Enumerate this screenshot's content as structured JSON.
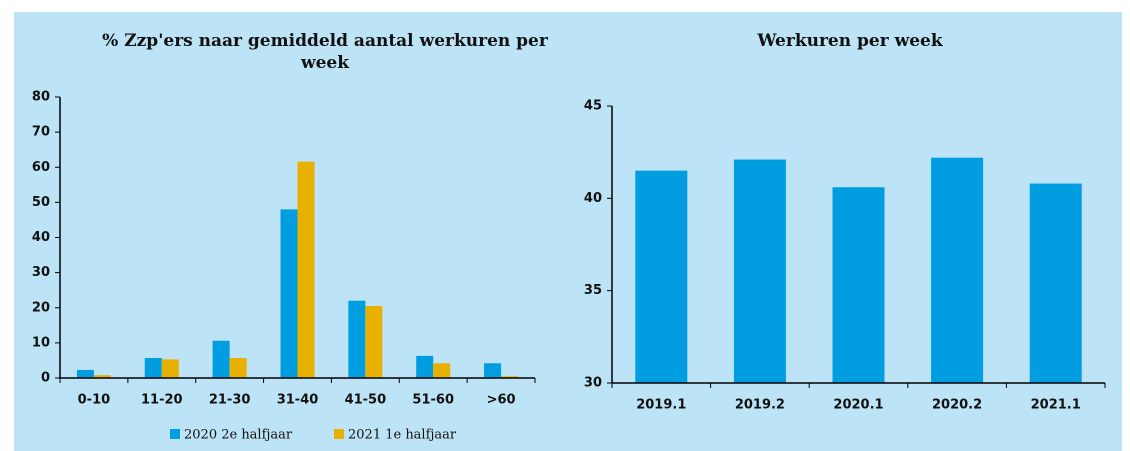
{
  "chart_data": [
    {
      "type": "bar",
      "title": "% Zzp'ers naar gemiddeld aantal werkuren per week",
      "categories": [
        "0-10",
        "11-20",
        "21-30",
        "31-40",
        "41-50",
        "51-60",
        ">60"
      ],
      "series": [
        {
          "name": "2020 2e halfjaar",
          "color": "#009de0",
          "values": [
            2.3,
            5.7,
            10.6,
            48,
            22,
            6.3,
            4.2
          ]
        },
        {
          "name": "2021 1e halfjaar",
          "color": "#e8b000",
          "values": [
            0.8,
            5.3,
            5.7,
            61.6,
            20.5,
            4.2,
            0.5
          ]
        }
      ],
      "ylim": [
        0,
        80
      ],
      "yticks": [
        0,
        10,
        20,
        30,
        40,
        50,
        60,
        70,
        80
      ],
      "grid": false,
      "legend": "bottom"
    },
    {
      "type": "bar",
      "title": "Werkuren per week",
      "categories": [
        "2019.1",
        "2019.2",
        "2020.1",
        "2020.2",
        "2021.1"
      ],
      "values": [
        41.5,
        42.1,
        40.6,
        42.2,
        40.8
      ],
      "color": "#009de0",
      "ylim": [
        30,
        45
      ],
      "yticks": [
        30,
        35,
        40,
        45
      ],
      "grid": false
    }
  ]
}
